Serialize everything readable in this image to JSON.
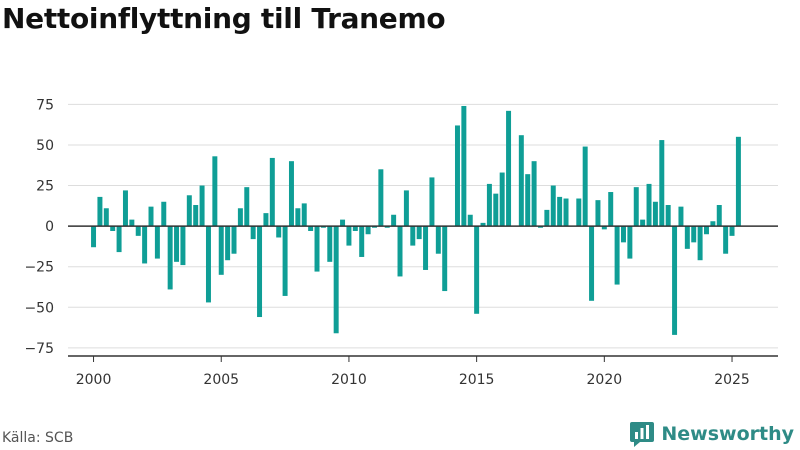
{
  "title": "Nettoinflyttning till Tranemo",
  "source": "Källa: SCB",
  "brand": {
    "name": "Newsworthy",
    "logo_icon": "newsworthy-chart-bubble-icon",
    "color": "#2e8b86"
  },
  "colors": {
    "bar": "#0f9e96",
    "grid": "#dddddd",
    "zero": "#333333"
  },
  "chart_data": {
    "type": "bar",
    "title": "Nettoinflyttning till Tranemo",
    "xlabel": "",
    "ylabel": "",
    "grid": true,
    "ylim": [
      -80,
      90
    ],
    "xlim": [
      1999.0,
      2026.8
    ],
    "yticks": [
      -75,
      -50,
      -25,
      0,
      25,
      50,
      75
    ],
    "xticks": [
      2000,
      2005,
      2010,
      2015,
      2020,
      2025
    ],
    "frequency": "quarterly",
    "first_quarter": "2000-Q1",
    "last_quarter": "2025-Q2",
    "values": [
      -13,
      18,
      11,
      -3,
      -16,
      22,
      4,
      -6,
      -23,
      12,
      -20,
      15,
      -39,
      -22,
      -24,
      19,
      13,
      25,
      -47,
      43,
      -30,
      -21,
      -17,
      11,
      24,
      -8,
      -56,
      8,
      42,
      -7,
      -43,
      40,
      11,
      14,
      -3,
      -28,
      -1,
      -22,
      -66,
      4,
      -12,
      -3,
      -19,
      -5,
      -1,
      35,
      -1,
      7,
      -31,
      22,
      -12,
      -8,
      -27,
      30,
      -17,
      -40,
      0,
      62,
      74,
      7,
      -54,
      2,
      26,
      20,
      33,
      71,
      0,
      56,
      32,
      40,
      -1,
      10,
      25,
      18,
      17,
      0,
      17,
      49,
      -46,
      16,
      -2,
      21,
      -36,
      -10,
      -20,
      24,
      4,
      26,
      15,
      53,
      13,
      -67,
      12,
      -14,
      -10,
      -21,
      -5,
      3,
      13,
      -17,
      -6,
      55
    ]
  }
}
